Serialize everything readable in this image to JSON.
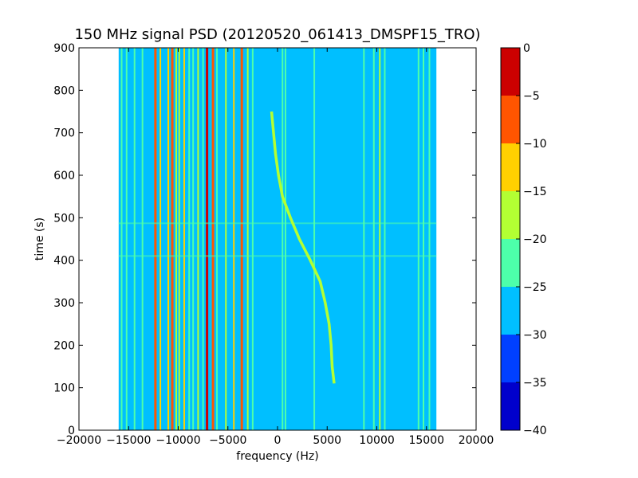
{
  "chart_data": {
    "type": "heatmap",
    "title": "150 MHz signal PSD (20120520_061413_DMSPF15_TRO)",
    "xlabel": "frequency (Hz)",
    "ylabel": "time (s)",
    "xlim": [
      -20000,
      20000
    ],
    "ylim": [
      0,
      900
    ],
    "xticks": [
      -20000,
      -15000,
      -10000,
      -5000,
      0,
      5000,
      10000,
      15000,
      20000
    ],
    "xtick_labels": [
      "−20000",
      "−15000",
      "−10000",
      "−5000",
      "0",
      "5000",
      "10000",
      "15000",
      "20000"
    ],
    "yticks": [
      0,
      100,
      200,
      300,
      400,
      500,
      600,
      700,
      800,
      900
    ],
    "ytick_labels": [
      "0",
      "100",
      "200",
      "300",
      "400",
      "500",
      "600",
      "700",
      "800",
      "900"
    ],
    "data_extent_hz": [
      -16000,
      16000
    ],
    "background_level": -27.5,
    "colorbar": {
      "levels": [
        -40,
        -35,
        -30,
        -25,
        -20,
        -15,
        -10,
        -5,
        0
      ],
      "tick_labels": [
        "−40",
        "−35",
        "−30",
        "−25",
        "−20",
        "−15",
        "−10",
        "−5",
        "0"
      ],
      "colors": [
        "#0000cc",
        "#0040ff",
        "#00bfff",
        "#4dffaa",
        "#b3ff33",
        "#ffd000",
        "#ff5500",
        "#cc0000"
      ]
    },
    "stationary_lines": [
      {
        "freq": -15700,
        "level": -22
      },
      {
        "freq": -15200,
        "level": -22
      },
      {
        "freq": -14400,
        "level": -22
      },
      {
        "freq": -13600,
        "level": -22
      },
      {
        "freq": -12300,
        "level": -7
      },
      {
        "freq": -11800,
        "level": -12
      },
      {
        "freq": -11000,
        "level": -12
      },
      {
        "freq": -10600,
        "level": -7
      },
      {
        "freq": -10200,
        "level": -17
      },
      {
        "freq": -9900,
        "level": -17
      },
      {
        "freq": -9400,
        "level": -12
      },
      {
        "freq": -8900,
        "level": -22
      },
      {
        "freq": -8500,
        "level": -22
      },
      {
        "freq": -8000,
        "level": -17
      },
      {
        "freq": -7500,
        "level": -22
      },
      {
        "freq": -7100,
        "level": -2
      },
      {
        "freq": -6500,
        "level": -7
      },
      {
        "freq": -6100,
        "level": -22
      },
      {
        "freq": -5200,
        "level": -17
      },
      {
        "freq": -4400,
        "level": -12
      },
      {
        "freq": -3600,
        "level": -7
      },
      {
        "freq": -3000,
        "level": -17
      },
      {
        "freq": -2500,
        "level": -22
      },
      {
        "freq": 500,
        "level": -22
      },
      {
        "freq": 800,
        "level": -22
      },
      {
        "freq": 3700,
        "level": -22
      },
      {
        "freq": 8700,
        "level": -22
      },
      {
        "freq": 9700,
        "level": -22
      },
      {
        "freq": 10300,
        "level": -17
      },
      {
        "freq": 10800,
        "level": -22
      },
      {
        "freq": 14200,
        "level": -22
      },
      {
        "freq": 14700,
        "level": -22
      },
      {
        "freq": 15300,
        "level": -22
      }
    ],
    "drifting_signal": {
      "level": -17,
      "points": [
        {
          "time": 110,
          "freq": 5700
        },
        {
          "time": 150,
          "freq": 5500
        },
        {
          "time": 200,
          "freq": 5400
        },
        {
          "time": 250,
          "freq": 5200
        },
        {
          "time": 300,
          "freq": 4800
        },
        {
          "time": 350,
          "freq": 4300
        },
        {
          "time": 400,
          "freq": 3300
        },
        {
          "time": 450,
          "freq": 2200
        },
        {
          "time": 500,
          "freq": 1300
        },
        {
          "time": 550,
          "freq": 500
        },
        {
          "time": 600,
          "freq": 100
        },
        {
          "time": 650,
          "freq": -200
        },
        {
          "time": 700,
          "freq": -400
        },
        {
          "time": 750,
          "freq": -600
        }
      ]
    },
    "horizontal_artifacts": [
      {
        "time": 410,
        "level": -22
      },
      {
        "time": 487,
        "level": -22
      }
    ]
  }
}
